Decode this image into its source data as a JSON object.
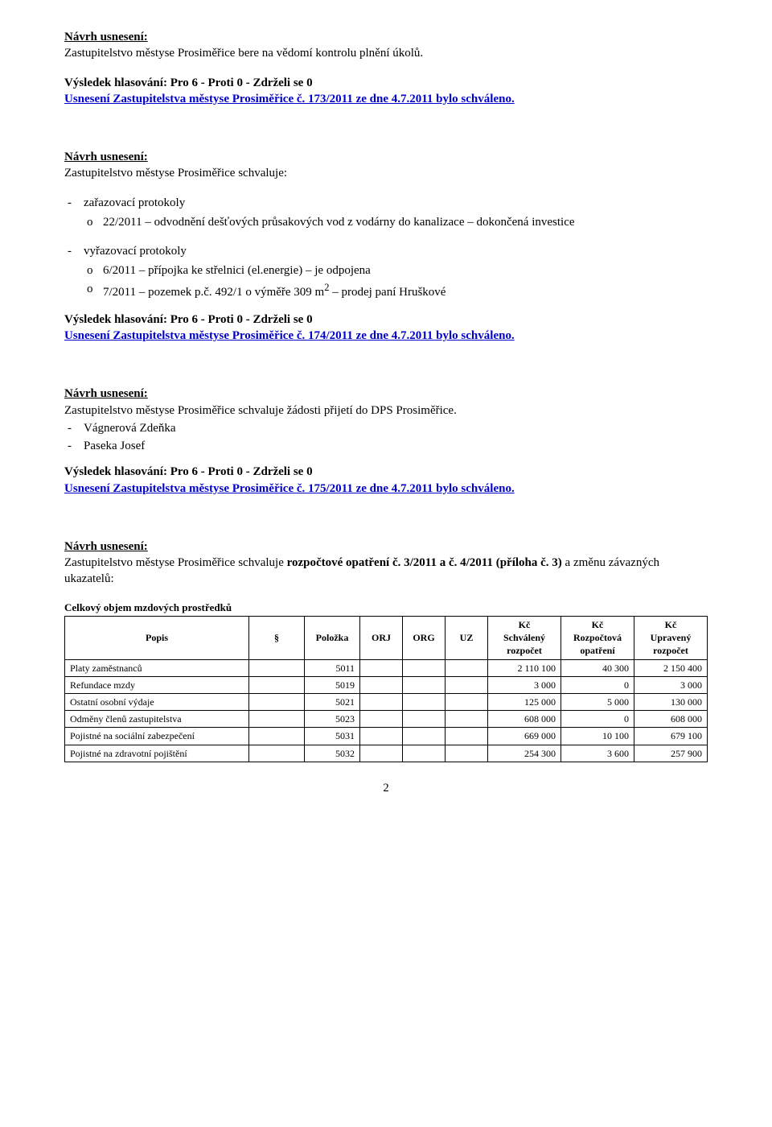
{
  "section1": {
    "proposal_heading": "Návrh usnesení:",
    "proposal_text": "Zastupitelstvo městyse Prosiměřice bere na vědomí kontrolu plnění úkolů.",
    "vote_line": "Výsledek hlasování:   Pro  6   -  Proti   0   -   Zdrželi se   0",
    "result_line": "Usnesení  Zastupitelstva městyse Prosiměřice č. 173/2011 ze dne 4.7.2011 bylo schváleno."
  },
  "section2": {
    "proposal_heading": "Návrh usnesení:",
    "proposal_text": "Zastupitelstvo městyse Prosiměřice schvaluje:",
    "group1_label": "zařazovací protokoly",
    "group1_item1": "22/2011 – odvodnění dešťových průsakových vod z vodárny do kanalizace – dokončená investice",
    "group2_label": "vyřazovací protokoly",
    "group2_item1": "6/2011 – přípojka ke střelnici (el.energie) – je odpojena",
    "group2_item2_a": "7/2011 – pozemek p.č. 492/1 o výměře 309 m",
    "group2_item2_sup": "2",
    "group2_item2_b": " – prodej paní Hruškové",
    "vote_line": "Výsledek hlasování:   Pro  6   -  Proti   0   -   Zdrželi se   0",
    "result_line": "Usnesení  Zastupitelstva městyse Prosiměřice č. 174/2011 ze dne 4.7.2011 bylo schváleno."
  },
  "section3": {
    "proposal_heading": "Návrh usnesení:",
    "proposal_text": "Zastupitelstvo městyse Prosiměřice schvaluje žádosti přijetí do DPS Prosiměřice.",
    "item1": "Vágnerová Zdeňka",
    "item2": "Paseka Josef",
    "vote_line": "Výsledek hlasování:   Pro  6   -  Proti   0   -   Zdrželi se   0",
    "result_line": "Usnesení  Zastupitelstva městyse Prosiměřice č. 175/2011 ze dne 4.7.2011 bylo schváleno."
  },
  "section4": {
    "proposal_heading": "Návrh usnesení:",
    "proposal_text_a": "Zastupitelstvo městyse Prosiměřice schvaluje ",
    "proposal_text_b": "rozpočtové opatření č. 3/2011 a č. 4/2011 (příloha č. 3)",
    "proposal_text_c": " a změnu závazných ukazatelů:"
  },
  "table": {
    "caption": "Celkový objem mzdových prostředků",
    "headers": {
      "popis": "Popis",
      "paragraf": "§",
      "polozka": "Položka",
      "orj": "ORJ",
      "org": "ORG",
      "uz": "UZ",
      "kc1_top": "Kč",
      "kc1_bot1": "Schválený",
      "kc1_bot2": "rozpočet",
      "kc2_top": "Kč",
      "kc2_bot1": "Rozpočtová",
      "kc2_bot2": "opatření",
      "kc3_top": "Kč",
      "kc3_bot1": "Upravený",
      "kc3_bot2": "rozpočet"
    },
    "rows": [
      {
        "desc": "Platy zaměstnanců",
        "polozka": "5011",
        "schvaleny": "2 110 100",
        "opatreni": "40 300",
        "upraveny": "2 150 400"
      },
      {
        "desc": "Refundace mzdy",
        "polozka": "5019",
        "schvaleny": "3 000",
        "opatreni": "0",
        "upraveny": "3 000"
      },
      {
        "desc": "Ostatní osobní výdaje",
        "polozka": "5021",
        "schvaleny": "125 000",
        "opatreni": "5 000",
        "upraveny": "130 000"
      },
      {
        "desc": "Odměny členů zastupitelstva",
        "polozka": "5023",
        "schvaleny": "608 000",
        "opatreni": "0",
        "upraveny": "608 000"
      },
      {
        "desc": "Pojistné na sociální zabezpečení",
        "polozka": "5031",
        "schvaleny": "669 000",
        "opatreni": "10 100",
        "upraveny": "679 100"
      },
      {
        "desc": "Pojistné na zdravotní pojištění",
        "polozka": "5032",
        "schvaleny": "254 300",
        "opatreni": "3 600",
        "upraveny": "257 900"
      }
    ]
  },
  "page_number": "2"
}
